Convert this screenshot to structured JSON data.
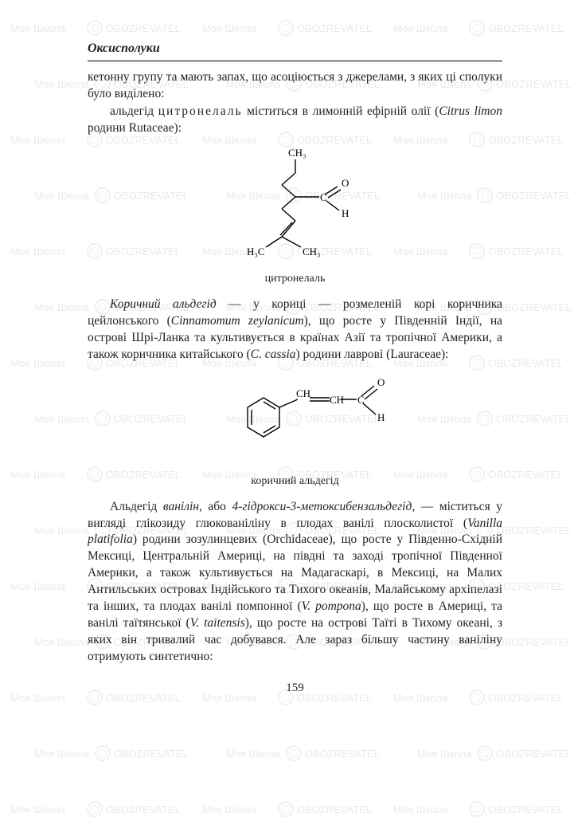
{
  "section_title": "Оксисполуки",
  "para1": "кетонну групу та мають запах, що асоціюється з джерелами, з яких ці сполуки було виділено:",
  "para2_a": "альдегід ",
  "para2_b": "цитронелаль",
  "para2_c": " міститься в лимонній ефірній олії (",
  "para2_d": "Citrus limon",
  "para2_e": " родини Rutaceae):",
  "fig1": {
    "labels": {
      "ch3_top": "CH₃",
      "cho_o": "O",
      "cho_c": "C",
      "cho_h": "H",
      "h3c": "H₃C",
      "ch3_bot": "CH₃"
    },
    "caption": "цитронелаль"
  },
  "para3_a": "Коричний альдегід",
  "para3_b": " — у кориці — розмеленій корі коричника цейлонського (",
  "para3_c": "Cinnamomum zeylanicum",
  "para3_d": "), що росте у Південній Індії, на острові Шрі-Ланка та культивується в країнах Азії та тропічної Америки, а також коричника китайського (",
  "para3_e": "C. cassia",
  "para3_f": ") родини лаврові (Lauraceae):",
  "fig2": {
    "labels": {
      "ch": "CH",
      "ch2": "CH",
      "c": "C",
      "o": "O",
      "h": "H"
    },
    "caption": "коричний альдегід"
  },
  "para4_a": "Альдегід ",
  "para4_b": "ванілін",
  "para4_c": ", або ",
  "para4_d": "4-гідрокси-3-метоксибензальдегід",
  "para4_e": ", — міститься у вигляді глікозиду глюкованіліну в плодах ванілі плосколистої (",
  "para4_f": "Vanilla platifolia",
  "para4_g": ") родини зозулинцевих (Orchidaceae), що росте у Південно-Східній Мексиці, Центральній Америці, на півдні та заході тропічної Південної Америки, а також культивується на Мадагаскарі, в Мексиці, на Малих Антильських островах Індійського та Тихого океанів, Малайському архіпелазі та інших, та плодах ванілі помпонної (",
  "para4_h": "V. pompona",
  "para4_i": "), що росте в Америці, та ванілі таїтянської (",
  "para4_j": "V. taitensis",
  "para4_k": "), що росте на острові Таїті в Тихому океані, з яких він тривалий час добувався. Але зараз більшу частину ваніліну отримують синтетично:",
  "page_number": "159",
  "watermarks": {
    "text1": "Моя Школа",
    "text2": "OBOZREVATEL"
  },
  "colors": {
    "text": "#222222",
    "background": "#ffffff",
    "watermark": "#888888"
  }
}
